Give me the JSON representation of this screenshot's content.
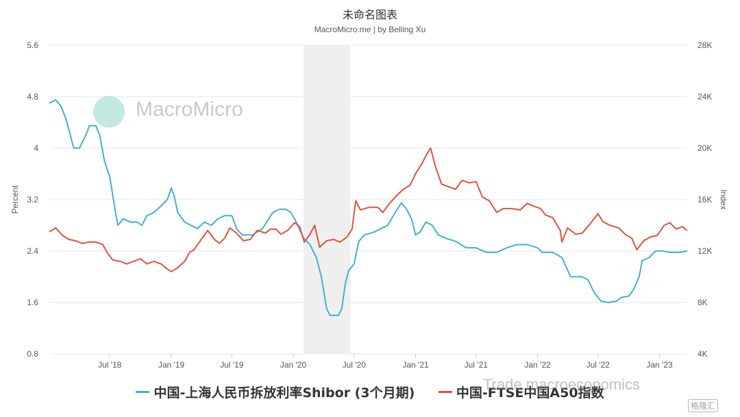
{
  "header": {
    "title": "未命名图表",
    "subtitle": "MacroMicro.me | by Belling Xu"
  },
  "watermark": {
    "brand": "MacroMicro",
    "bottom_text": "Trade macroeconomics",
    "corner_text": "格隆汇"
  },
  "colors": {
    "shibor": "#3fb0d3",
    "a50": "#e35238",
    "recession_band": "#efefef"
  },
  "chart_data": {
    "type": "line",
    "title": "未命名图表",
    "subtitle": "MacroMicro.me | by Belling Xu",
    "x_ticks": [
      "Jul '18",
      "Jan '19",
      "Jul '19",
      "Jan '20",
      "Jul '20",
      "Jan '21",
      "Jul '21",
      "Jan '22",
      "Jul '22",
      "Jan '23"
    ],
    "x_range": [
      "2018-01-01",
      "2023-03-25"
    ],
    "shaded_period": [
      "2020-02-01",
      "2020-06-20"
    ],
    "y_left": {
      "label": "Percent",
      "range": [
        0.8,
        5.6
      ],
      "ticks": [
        "0.8",
        "1.6",
        "2.4",
        "3.2",
        "4",
        "4.8",
        "5.6"
      ]
    },
    "y_right": {
      "label": "Index",
      "range": [
        4000,
        28000
      ],
      "ticks": [
        "4K",
        "8K",
        "12K",
        "16K",
        "20K",
        "24K",
        "28K"
      ]
    },
    "grid": true,
    "legend_position": "bottom",
    "series": [
      {
        "name": "中国-上海人民币拆放利率Shibor (3个月期)",
        "axis": "left",
        "points": [
          [
            "2018-01-01",
            4.7
          ],
          [
            "2018-01-20",
            4.75
          ],
          [
            "2018-02-05",
            4.65
          ],
          [
            "2018-02-20",
            4.45
          ],
          [
            "2018-03-05",
            4.2
          ],
          [
            "2018-03-15",
            4.0
          ],
          [
            "2018-04-01",
            4.0
          ],
          [
            "2018-04-20",
            4.2
          ],
          [
            "2018-05-01",
            4.35
          ],
          [
            "2018-05-20",
            4.35
          ],
          [
            "2018-06-01",
            4.2
          ],
          [
            "2018-06-15",
            3.8
          ],
          [
            "2018-07-01",
            3.55
          ],
          [
            "2018-07-15",
            3.1
          ],
          [
            "2018-07-25",
            2.8
          ],
          [
            "2018-08-10",
            2.9
          ],
          [
            "2018-09-01",
            2.85
          ],
          [
            "2018-09-20",
            2.85
          ],
          [
            "2018-10-05",
            2.8
          ],
          [
            "2018-10-20",
            2.95
          ],
          [
            "2018-11-10",
            3.0
          ],
          [
            "2018-12-01",
            3.1
          ],
          [
            "2018-12-20",
            3.2
          ],
          [
            "2019-01-01",
            3.38
          ],
          [
            "2019-01-10",
            3.25
          ],
          [
            "2019-01-20",
            3.0
          ],
          [
            "2019-02-10",
            2.85
          ],
          [
            "2019-03-01",
            2.8
          ],
          [
            "2019-03-20",
            2.75
          ],
          [
            "2019-04-10",
            2.85
          ],
          [
            "2019-05-01",
            2.8
          ],
          [
            "2019-05-20",
            2.9
          ],
          [
            "2019-06-10",
            2.95
          ],
          [
            "2019-07-01",
            2.95
          ],
          [
            "2019-07-15",
            2.75
          ],
          [
            "2019-08-01",
            2.65
          ],
          [
            "2019-09-01",
            2.65
          ],
          [
            "2019-10-01",
            2.75
          ],
          [
            "2019-11-01",
            3.0
          ],
          [
            "2019-11-20",
            3.05
          ],
          [
            "2019-12-10",
            3.05
          ],
          [
            "2019-12-25",
            3.0
          ],
          [
            "2020-01-10",
            2.85
          ],
          [
            "2020-02-01",
            2.6
          ],
          [
            "2020-02-20",
            2.5
          ],
          [
            "2020-03-10",
            2.3
          ],
          [
            "2020-03-25",
            2.0
          ],
          [
            "2020-04-10",
            1.5
          ],
          [
            "2020-04-20",
            1.4
          ],
          [
            "2020-05-15",
            1.4
          ],
          [
            "2020-05-25",
            1.5
          ],
          [
            "2020-06-05",
            1.9
          ],
          [
            "2020-06-15",
            2.1
          ],
          [
            "2020-07-01",
            2.2
          ],
          [
            "2020-07-15",
            2.55
          ],
          [
            "2020-08-01",
            2.65
          ],
          [
            "2020-09-01",
            2.7
          ],
          [
            "2020-09-20",
            2.75
          ],
          [
            "2020-10-10",
            2.8
          ],
          [
            "2020-11-01",
            3.0
          ],
          [
            "2020-11-20",
            3.15
          ],
          [
            "2020-12-05",
            3.05
          ],
          [
            "2020-12-20",
            2.9
          ],
          [
            "2021-01-01",
            2.65
          ],
          [
            "2021-01-15",
            2.7
          ],
          [
            "2021-02-01",
            2.85
          ],
          [
            "2021-02-20",
            2.8
          ],
          [
            "2021-03-10",
            2.65
          ],
          [
            "2021-04-01",
            2.6
          ],
          [
            "2021-05-01",
            2.55
          ],
          [
            "2021-06-01",
            2.45
          ],
          [
            "2021-07-01",
            2.45
          ],
          [
            "2021-08-01",
            2.38
          ],
          [
            "2021-09-01",
            2.38
          ],
          [
            "2021-10-01",
            2.45
          ],
          [
            "2021-11-01",
            2.5
          ],
          [
            "2021-12-01",
            2.5
          ],
          [
            "2022-01-01",
            2.45
          ],
          [
            "2022-01-15",
            2.38
          ],
          [
            "2022-02-15",
            2.38
          ],
          [
            "2022-03-15",
            2.3
          ],
          [
            "2022-04-10",
            2.0
          ],
          [
            "2022-05-15",
            2.0
          ],
          [
            "2022-06-01",
            1.95
          ],
          [
            "2022-06-20",
            1.75
          ],
          [
            "2022-07-10",
            1.62
          ],
          [
            "2022-08-01",
            1.6
          ],
          [
            "2022-08-25",
            1.62
          ],
          [
            "2022-09-10",
            1.68
          ],
          [
            "2022-10-01",
            1.7
          ],
          [
            "2022-10-15",
            1.8
          ],
          [
            "2022-11-01",
            2.0
          ],
          [
            "2022-11-10",
            2.25
          ],
          [
            "2022-12-01",
            2.3
          ],
          [
            "2022-12-20",
            2.4
          ],
          [
            "2023-01-10",
            2.4
          ],
          [
            "2023-02-01",
            2.38
          ],
          [
            "2023-03-01",
            2.38
          ],
          [
            "2023-03-25",
            2.4
          ]
        ]
      },
      {
        "name": "中国-FTSE中国A50指数",
        "axis": "right",
        "points": [
          [
            "2018-01-01",
            13500
          ],
          [
            "2018-01-20",
            13800
          ],
          [
            "2018-02-10",
            13200
          ],
          [
            "2018-03-01",
            12900
          ],
          [
            "2018-03-20",
            12800
          ],
          [
            "2018-04-10",
            12600
          ],
          [
            "2018-05-01",
            12700
          ],
          [
            "2018-05-20",
            12700
          ],
          [
            "2018-06-10",
            12500
          ],
          [
            "2018-06-25",
            11800
          ],
          [
            "2018-07-10",
            11300
          ],
          [
            "2018-08-01",
            11200
          ],
          [
            "2018-08-20",
            11000
          ],
          [
            "2018-09-10",
            11200
          ],
          [
            "2018-10-01",
            11400
          ],
          [
            "2018-10-20",
            11000
          ],
          [
            "2018-11-10",
            11200
          ],
          [
            "2018-12-01",
            11000
          ],
          [
            "2018-12-20",
            10600
          ],
          [
            "2019-01-01",
            10400
          ],
          [
            "2019-01-20",
            10700
          ],
          [
            "2019-02-10",
            11200
          ],
          [
            "2019-02-25",
            11900
          ],
          [
            "2019-03-10",
            12100
          ],
          [
            "2019-04-01",
            12900
          ],
          [
            "2019-04-20",
            13600
          ],
          [
            "2019-05-10",
            12900
          ],
          [
            "2019-05-25",
            12600
          ],
          [
            "2019-06-10",
            13000
          ],
          [
            "2019-06-25",
            13800
          ],
          [
            "2019-07-15",
            13400
          ],
          [
            "2019-08-05",
            12800
          ],
          [
            "2019-08-25",
            12900
          ],
          [
            "2019-09-15",
            13600
          ],
          [
            "2019-10-10",
            13400
          ],
          [
            "2019-10-25",
            13700
          ],
          [
            "2019-11-10",
            13700
          ],
          [
            "2019-11-25",
            13300
          ],
          [
            "2019-12-15",
            13600
          ],
          [
            "2020-01-05",
            14200
          ],
          [
            "2020-01-20",
            13900
          ],
          [
            "2020-02-03",
            12700
          ],
          [
            "2020-02-20",
            13300
          ],
          [
            "2020-03-05",
            14000
          ],
          [
            "2020-03-20",
            12300
          ],
          [
            "2020-04-10",
            12800
          ],
          [
            "2020-05-01",
            12900
          ],
          [
            "2020-05-20",
            12700
          ],
          [
            "2020-06-10",
            13100
          ],
          [
            "2020-06-25",
            13700
          ],
          [
            "2020-07-06",
            15900
          ],
          [
            "2020-07-20",
            15200
          ],
          [
            "2020-08-15",
            15400
          ],
          [
            "2020-09-10",
            15400
          ],
          [
            "2020-09-25",
            15000
          ],
          [
            "2020-10-15",
            15700
          ],
          [
            "2020-11-05",
            16300
          ],
          [
            "2020-11-25",
            16800
          ],
          [
            "2020-12-15",
            17100
          ],
          [
            "2021-01-01",
            18000
          ],
          [
            "2021-01-20",
            18800
          ],
          [
            "2021-02-05",
            19600
          ],
          [
            "2021-02-15",
            20000
          ],
          [
            "2021-03-01",
            18600
          ],
          [
            "2021-03-20",
            17200
          ],
          [
            "2021-04-10",
            17000
          ],
          [
            "2021-05-01",
            16800
          ],
          [
            "2021-05-20",
            17500
          ],
          [
            "2021-06-10",
            17300
          ],
          [
            "2021-07-01",
            17400
          ],
          [
            "2021-07-20",
            16200
          ],
          [
            "2021-08-10",
            15900
          ],
          [
            "2021-09-01",
            15000
          ],
          [
            "2021-09-20",
            15300
          ],
          [
            "2021-10-15",
            15300
          ],
          [
            "2021-11-10",
            15200
          ],
          [
            "2021-12-01",
            15700
          ],
          [
            "2021-12-20",
            15500
          ],
          [
            "2022-01-10",
            15300
          ],
          [
            "2022-01-25",
            14800
          ],
          [
            "2022-02-15",
            14600
          ],
          [
            "2022-03-10",
            13600
          ],
          [
            "2022-03-15",
            12700
          ],
          [
            "2022-04-01",
            13800
          ],
          [
            "2022-04-25",
            13300
          ],
          [
            "2022-05-15",
            13400
          ],
          [
            "2022-06-10",
            14200
          ],
          [
            "2022-07-01",
            14900
          ],
          [
            "2022-07-15",
            14300
          ],
          [
            "2022-08-05",
            14000
          ],
          [
            "2022-09-01",
            13800
          ],
          [
            "2022-09-20",
            13300
          ],
          [
            "2022-10-10",
            13000
          ],
          [
            "2022-10-25",
            12100
          ],
          [
            "2022-11-15",
            12800
          ],
          [
            "2022-12-05",
            13100
          ],
          [
            "2022-12-25",
            13200
          ],
          [
            "2023-01-15",
            14000
          ],
          [
            "2023-02-01",
            14200
          ],
          [
            "2023-02-20",
            13700
          ],
          [
            "2023-03-10",
            13900
          ],
          [
            "2023-03-25",
            13600
          ]
        ]
      }
    ]
  }
}
